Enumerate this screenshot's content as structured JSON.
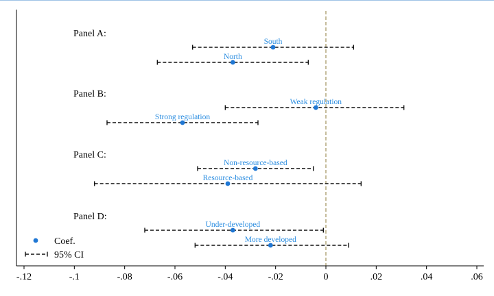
{
  "chart_data": {
    "type": "scatter",
    "subtype": "coefficient-plot",
    "title": "",
    "xlabel": "",
    "ylabel": "",
    "xlim": [
      -0.12,
      0.06
    ],
    "x_ticks": [
      -0.12,
      -0.1,
      -0.08,
      -0.06,
      -0.04,
      -0.02,
      0,
      0.02,
      0.04,
      0.06
    ],
    "x_tick_labels": [
      "-.12",
      "-.1",
      "-.08",
      "-.06",
      "-.04",
      "-.02",
      "0",
      ".02",
      ".04",
      ".06"
    ],
    "reference_line": {
      "x": 0,
      "style": "dashed",
      "color": "#a89968"
    },
    "grid": false,
    "colors": {
      "point": "#1f77d4",
      "label": "#2b8de0",
      "ci": "#111111",
      "axis": "#000000"
    },
    "legend": {
      "position": "bottom-left",
      "items": [
        {
          "label": "Coef.",
          "symbol": "dot"
        },
        {
          "label": "95% CI",
          "symbol": "capped-line"
        }
      ]
    },
    "panels": [
      {
        "label": "Panel A:",
        "series": [
          {
            "name": "South",
            "coef": -0.021,
            "ci": [
              -0.053,
              0.011
            ]
          },
          {
            "name": "North",
            "coef": -0.037,
            "ci": [
              -0.067,
              -0.007
            ]
          }
        ]
      },
      {
        "label": "Panel B:",
        "series": [
          {
            "name": "Weak regulation",
            "coef": -0.004,
            "ci": [
              -0.04,
              0.031
            ]
          },
          {
            "name": "Strong regulation",
            "coef": -0.057,
            "ci": [
              -0.087,
              -0.027
            ]
          }
        ]
      },
      {
        "label": "Panel C:",
        "series": [
          {
            "name": "Non-resource-based",
            "coef": -0.028,
            "ci": [
              -0.051,
              -0.005
            ]
          },
          {
            "name": "Resource-based",
            "coef": -0.039,
            "ci": [
              -0.092,
              0.014
            ]
          }
        ]
      },
      {
        "label": "Panel D:",
        "series": [
          {
            "name": "Under-developed",
            "coef": -0.037,
            "ci": [
              -0.072,
              -0.001
            ]
          },
          {
            "name": "More developed",
            "coef": -0.022,
            "ci": [
              -0.052,
              0.009
            ]
          }
        ]
      }
    ]
  }
}
